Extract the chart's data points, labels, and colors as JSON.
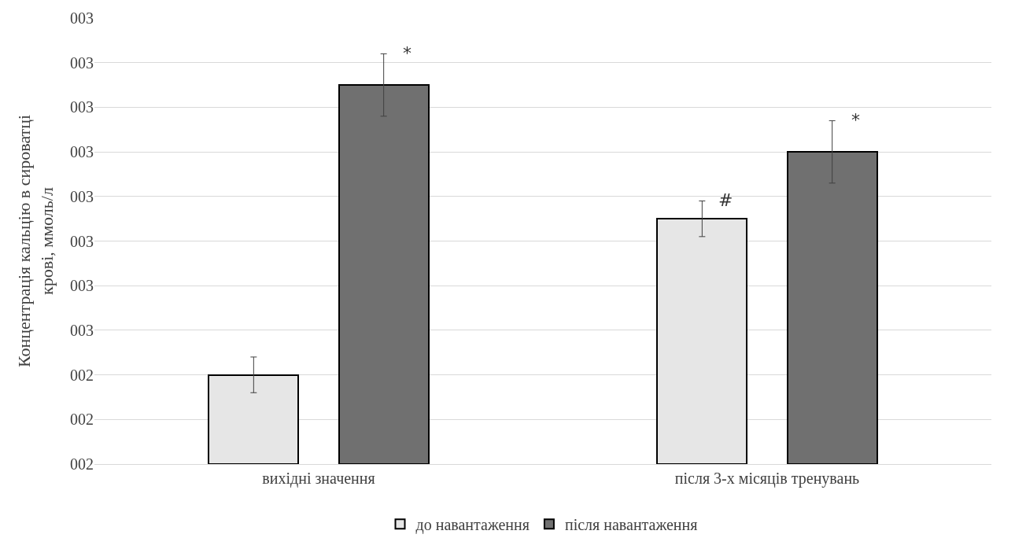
{
  "chart_data": {
    "type": "bar",
    "ylabel": "Концентрація кальцію в сироватці крові, ммоль/л",
    "categories": [
      "вихідні значення",
      "після 3-х місяців тренувань"
    ],
    "series": [
      {
        "name": "до навантаження",
        "color": "#e6e6e6",
        "values": [
          2.4,
          2.75
        ],
        "errors": [
          0.04,
          0.04
        ],
        "value_labels": [
          null,
          "#"
        ]
      },
      {
        "name": "після навантаження",
        "color": "#707070",
        "values": [
          3.05,
          2.9
        ],
        "errors": [
          0.07,
          0.07
        ],
        "value_labels": [
          "*",
          "*"
        ]
      }
    ],
    "ylim": [
      2.2,
      3.2
    ],
    "yticks": [
      {
        "value": 2.2,
        "label": "002"
      },
      {
        "value": 2.3,
        "label": "002"
      },
      {
        "value": 2.4,
        "label": "002"
      },
      {
        "value": 2.5,
        "label": "003"
      },
      {
        "value": 2.6,
        "label": "003"
      },
      {
        "value": 2.7,
        "label": "003"
      },
      {
        "value": 2.8,
        "label": "003"
      },
      {
        "value": 2.9,
        "label": "003"
      },
      {
        "value": 3.0,
        "label": "003"
      },
      {
        "value": 3.1,
        "label": "003"
      },
      {
        "value": 3.2,
        "label": "003"
      }
    ],
    "grid": "y",
    "legend": "bottom"
  }
}
